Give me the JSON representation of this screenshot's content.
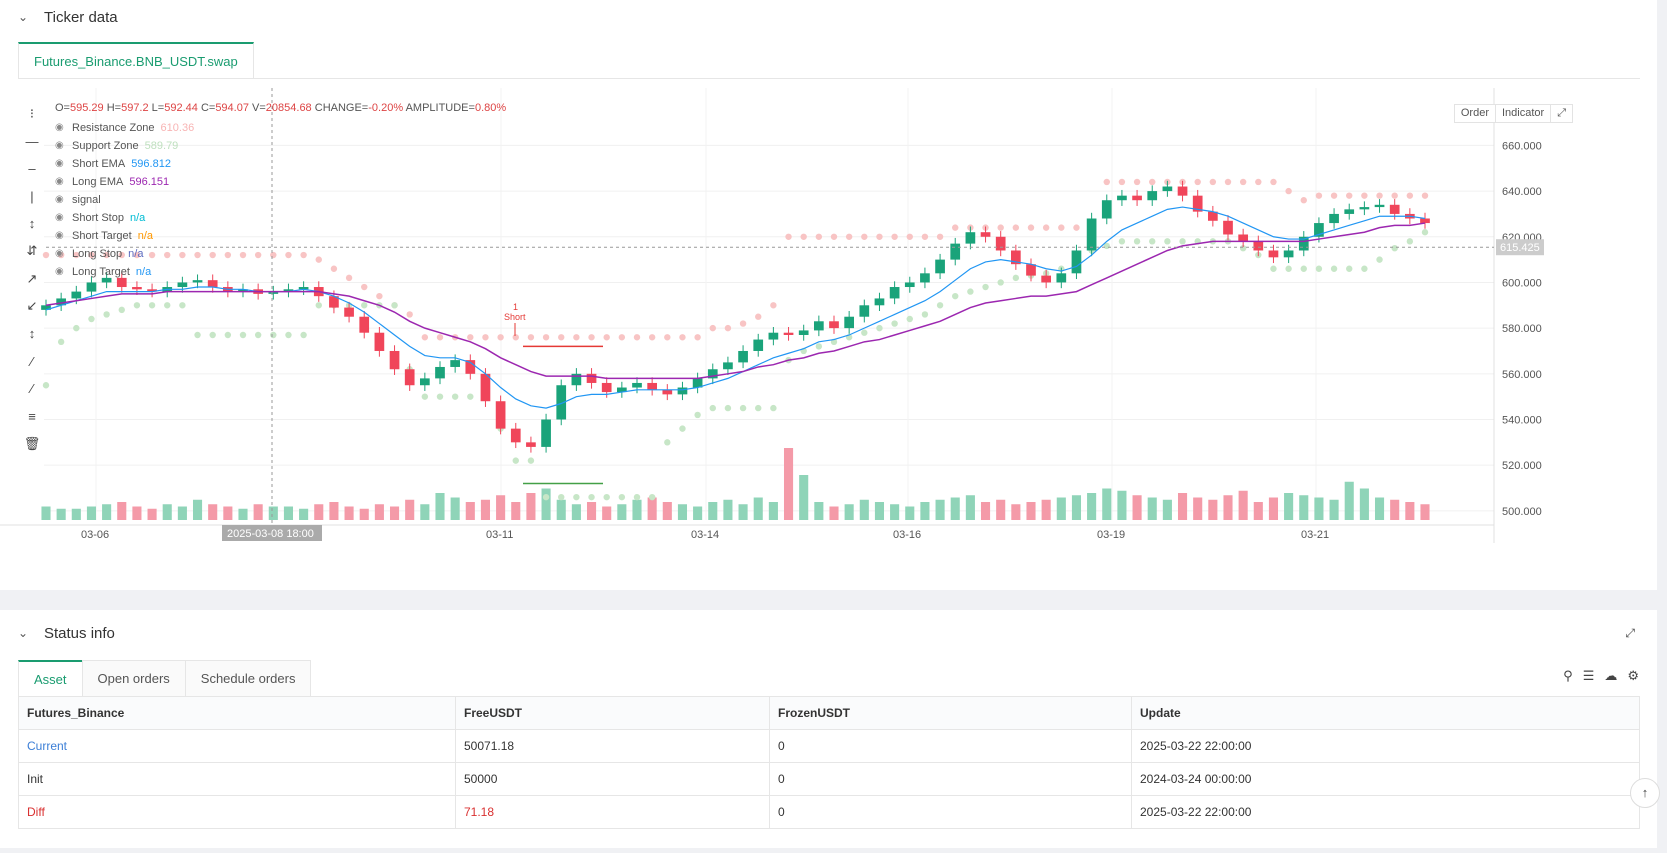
{
  "ticker_panel": {
    "title": "Ticker data",
    "tab": "Futures_Binance.BNB_USDT.swap"
  },
  "ohlc": {
    "o_label": "O=",
    "o": "595.29",
    "h_label": "H=",
    "h": "597.2",
    "l_label": "L=",
    "l": "592.44",
    "c_label": "C=",
    "c": "594.07",
    "v_label": "V=",
    "v": "20854.68",
    "change_label": "CHANGE=",
    "change": "-0.20%",
    "amp_label": "AMPLITUDE=",
    "amp": "0.80%"
  },
  "legend": [
    {
      "name": "Resistance Zone",
      "value": "610.36",
      "color": "#f8b4b4"
    },
    {
      "name": "Support Zone",
      "value": "589.79",
      "color": "#bfe0bf"
    },
    {
      "name": "Short EMA",
      "value": "596.812",
      "color": "#2196f3"
    },
    {
      "name": "Long EMA",
      "value": "596.151",
      "color": "#9c27b0"
    },
    {
      "name": "signal",
      "value": "",
      "color": "#555"
    },
    {
      "name": "Short Stop",
      "value": "n/a",
      "color": "#00bcd4"
    },
    {
      "name": "Short Target",
      "value": "n/a",
      "color": "#ff9800"
    },
    {
      "name": "Long Stop",
      "value": "n/a",
      "color": "#5c6bc0"
    },
    {
      "name": "Long Target",
      "value": "n/a",
      "color": "#2196f3"
    }
  ],
  "chart_buttons": {
    "order": "Order",
    "indicator": "Indicator"
  },
  "chart_data": {
    "type": "candlestick",
    "y_ticks": [
      "660.000",
      "640.000",
      "620.000",
      "600.000",
      "580.000",
      "560.000",
      "540.000",
      "520.000",
      "500.000"
    ],
    "ylim": [
      496,
      672
    ],
    "x_ticks": [
      "03-06",
      "03-11",
      "03-14",
      "03-16",
      "03-19",
      "03-21"
    ],
    "crosshair_time": "2025-03-08 18:00",
    "crosshair_price": "615.425",
    "signal_label": "1",
    "signal_text": "Short",
    "close_series": [
      590,
      593,
      596,
      600,
      602,
      598,
      597,
      596,
      598,
      600,
      601,
      598,
      596,
      597,
      595,
      596,
      597,
      598,
      594,
      589,
      585,
      578,
      570,
      562,
      555,
      558,
      563,
      566,
      560,
      548,
      536,
      530,
      528,
      540,
      555,
      560,
      556,
      552,
      554,
      556,
      553,
      551,
      554,
      558,
      562,
      565,
      570,
      575,
      578,
      577,
      579,
      583,
      580,
      585,
      590,
      593,
      598,
      600,
      604,
      610,
      617,
      622,
      620,
      614,
      608,
      603,
      600,
      604,
      614,
      628,
      636,
      638,
      636,
      640,
      642,
      638,
      631,
      627,
      621,
      618,
      614,
      611,
      614,
      620,
      626,
      630,
      632,
      633,
      634,
      630,
      628,
      626
    ],
    "short_ema": [
      588,
      590,
      592,
      594,
      596,
      596,
      596,
      596,
      597,
      597,
      598,
      598,
      597,
      597,
      596,
      596,
      596,
      597,
      596,
      594,
      591,
      587,
      582,
      577,
      572,
      568,
      567,
      567,
      565,
      560,
      554,
      549,
      546,
      545,
      547,
      550,
      551,
      551,
      552,
      553,
      553,
      553,
      553,
      554,
      556,
      558,
      561,
      564,
      567,
      569,
      571,
      574,
      575,
      577,
      580,
      583,
      586,
      589,
      592,
      596,
      601,
      606,
      609,
      610,
      609,
      608,
      606,
      605,
      607,
      612,
      618,
      623,
      626,
      629,
      632,
      633,
      632,
      631,
      629,
      626,
      623,
      620,
      619,
      619,
      621,
      623,
      625,
      627,
      629,
      629,
      629,
      628
    ],
    "long_ema": [
      590,
      591,
      592,
      593,
      594,
      595,
      595,
      595,
      596,
      596,
      596,
      596,
      596,
      596,
      596,
      596,
      596,
      596,
      596,
      595,
      594,
      592,
      590,
      587,
      583,
      580,
      578,
      576,
      574,
      571,
      567,
      564,
      561,
      559,
      559,
      559,
      559,
      558,
      558,
      558,
      558,
      558,
      558,
      558,
      559,
      560,
      561,
      563,
      564,
      566,
      567,
      569,
      570,
      572,
      574,
      575,
      577,
      579,
      581,
      583,
      586,
      589,
      591,
      592,
      593,
      594,
      594,
      595,
      596,
      599,
      602,
      605,
      608,
      611,
      614,
      616,
      617,
      618,
      618,
      618,
      618,
      618,
      618,
      618,
      619,
      620,
      621,
      622,
      624,
      625,
      625,
      626
    ],
    "resistance": [
      612,
      612,
      612,
      612,
      612,
      612,
      612,
      612,
      612,
      612,
      612,
      612,
      612,
      612,
      612,
      612,
      612,
      612,
      610,
      606,
      602,
      598,
      594,
      590,
      586,
      576,
      576,
      576,
      576,
      576,
      576,
      576,
      576,
      576,
      576,
      576,
      576,
      576,
      576,
      576,
      576,
      576,
      576,
      576,
      580,
      580,
      582,
      585,
      590,
      620,
      620,
      620,
      620,
      620,
      620,
      620,
      620,
      620,
      620,
      620,
      624,
      624,
      624,
      624,
      624,
      624,
      624,
      624,
      624,
      624,
      644,
      644,
      644,
      644,
      644,
      644,
      644,
      644,
      644,
      644,
      644,
      644,
      640,
      636,
      638,
      638,
      638,
      638,
      638,
      638,
      638,
      638
    ],
    "support": [
      555,
      574,
      580,
      584,
      586,
      588,
      590,
      590,
      590,
      590,
      577,
      577,
      577,
      577,
      577,
      577,
      577,
      577,
      590,
      590,
      590,
      590,
      590,
      590,
      562,
      550,
      550,
      550,
      550,
      550,
      536,
      522,
      522,
      506,
      506,
      506,
      506,
      506,
      506,
      506,
      506,
      530,
      536,
      542,
      545,
      545,
      545,
      545,
      545,
      566,
      570,
      572,
      574,
      576,
      578,
      580,
      582,
      584,
      586,
      590,
      594,
      596,
      598,
      600,
      602,
      603,
      604,
      606,
      610,
      614,
      616,
      618,
      618,
      618,
      618,
      618,
      618,
      618,
      618,
      615,
      612,
      606,
      606,
      606,
      606,
      606,
      606,
      606,
      610,
      615,
      618,
      622
    ],
    "volume": [
      6,
      5,
      5,
      6,
      7,
      8,
      6,
      5,
      7,
      6,
      9,
      7,
      6,
      5,
      7,
      6,
      6,
      5,
      7,
      8,
      6,
      5,
      7,
      6,
      9,
      7,
      12,
      10,
      8,
      9,
      11,
      8,
      12,
      14,
      9,
      7,
      8,
      6,
      7,
      9,
      10,
      8,
      7,
      6,
      8,
      9,
      7,
      10,
      8,
      32,
      20,
      8,
      6,
      7,
      9,
      8,
      7,
      6,
      8,
      9,
      10,
      11,
      8,
      9,
      7,
      8,
      9,
      10,
      11,
      12,
      14,
      13,
      11,
      10,
      9,
      12,
      10,
      9,
      11,
      13,
      8,
      10,
      12,
      11,
      10,
      9,
      17,
      14,
      10,
      9,
      8,
      7
    ],
    "signal_lines": {
      "stop": 572,
      "target": 512
    }
  },
  "status_panel": {
    "title": "Status info",
    "tabs": [
      "Asset",
      "Open orders",
      "Schedule orders"
    ],
    "columns": [
      "Futures_Binance",
      "FreeUSDT",
      "FrozenUSDT",
      "Update"
    ],
    "rows": [
      {
        "name": "Current",
        "free": "50071.18",
        "frozen": "0",
        "update": "2025-03-22 22:00:00",
        "name_color": "#3b7ed6",
        "free_color": "#333"
      },
      {
        "name": "Init",
        "free": "50000",
        "frozen": "0",
        "update": "2024-03-24 00:00:00",
        "name_color": "#333",
        "free_color": "#333"
      },
      {
        "name": "Diff",
        "free": "71.18",
        "frozen": "0",
        "update": "2025-03-22 22:00:00",
        "name_color": "#d93030",
        "free_color": "#d93030"
      }
    ]
  }
}
